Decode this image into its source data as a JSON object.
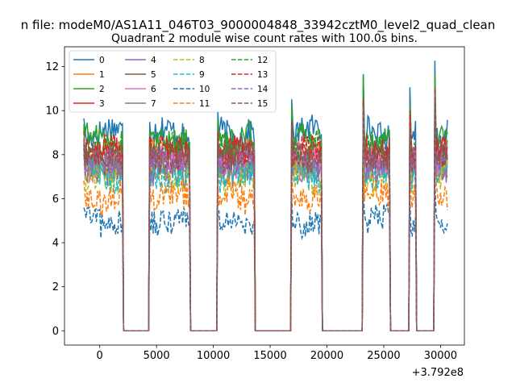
{
  "figure": {
    "suptitle": "n file: modeM0/AS1A11_046T03_9000004848_33942cztM0_level2_quad_clean",
    "title": "Quadrant 2 module wise count rates with 100.0s bins.",
    "offset_label": "+3.792e8"
  },
  "chart_data": {
    "type": "line",
    "title": "Quadrant 2 module wise count rates with 100.0s bins.",
    "xlabel": "",
    "ylabel": "",
    "x_offset": 379200000,
    "xlim": [
      -3100,
      32100
    ],
    "ylim": [
      -0.65,
      12.9
    ],
    "xticks": [
      0,
      5000,
      10000,
      15000,
      20000,
      25000,
      30000
    ],
    "xtick_labels": [
      "0",
      "5000",
      "10000",
      "15000",
      "20000",
      "25000",
      "30000"
    ],
    "yticks": [
      0,
      2,
      4,
      6,
      8,
      10,
      12
    ],
    "ytick_labels": [
      "0",
      "2",
      "4",
      "6",
      "8",
      "10",
      "12"
    ],
    "grid": false,
    "legend_position": "upper-left",
    "legend_columns": 4,
    "on_intervals": [
      [
        -1400,
        2000
      ],
      [
        4400,
        7900
      ],
      [
        10400,
        13600
      ],
      [
        16900,
        19500
      ],
      [
        23200,
        25500
      ],
      [
        27300,
        27800
      ],
      [
        29500,
        30600
      ]
    ],
    "segment_starts": [
      -1400,
      4400,
      10400,
      16900,
      23200,
      27300,
      29500
    ],
    "segment_start_values": [
      9.8,
      9.6,
      9.9,
      10.5,
      11.8,
      10.8,
      12.2
    ],
    "series": [
      {
        "name": "0",
        "color": "#1f77b4",
        "style": "solid",
        "level": 9.0
      },
      {
        "name": "1",
        "color": "#ff7f0e",
        "style": "solid",
        "level": 7.9
      },
      {
        "name": "2",
        "color": "#2ca02c",
        "style": "solid",
        "level": 8.7
      },
      {
        "name": "3",
        "color": "#d62728",
        "style": "solid",
        "level": 8.0
      },
      {
        "name": "4",
        "color": "#9467bd",
        "style": "solid",
        "level": 7.4
      },
      {
        "name": "5",
        "color": "#8c564b",
        "style": "solid",
        "level": 7.8
      },
      {
        "name": "6",
        "color": "#e377c2",
        "style": "solid",
        "level": 7.6
      },
      {
        "name": "7",
        "color": "#7f7f7f",
        "style": "solid",
        "level": 7.3
      },
      {
        "name": "8",
        "color": "#bcbd22",
        "style": "dashed",
        "level": 6.9
      },
      {
        "name": "9",
        "color": "#17becf",
        "style": "dashed",
        "level": 7.1
      },
      {
        "name": "10",
        "color": "#1f77b4",
        "style": "dashed",
        "level": 5.0
      },
      {
        "name": "11",
        "color": "#ff7f0e",
        "style": "dashed",
        "level": 6.1
      },
      {
        "name": "12",
        "color": "#2ca02c",
        "style": "dashed",
        "level": 8.3
      },
      {
        "name": "13",
        "color": "#d62728",
        "style": "dashed",
        "level": 8.1
      },
      {
        "name": "14",
        "color": "#9467bd",
        "style": "dashed",
        "level": 7.7
      },
      {
        "name": "15",
        "color": "#8c564b",
        "style": "dashed",
        "level": 7.9
      }
    ]
  }
}
